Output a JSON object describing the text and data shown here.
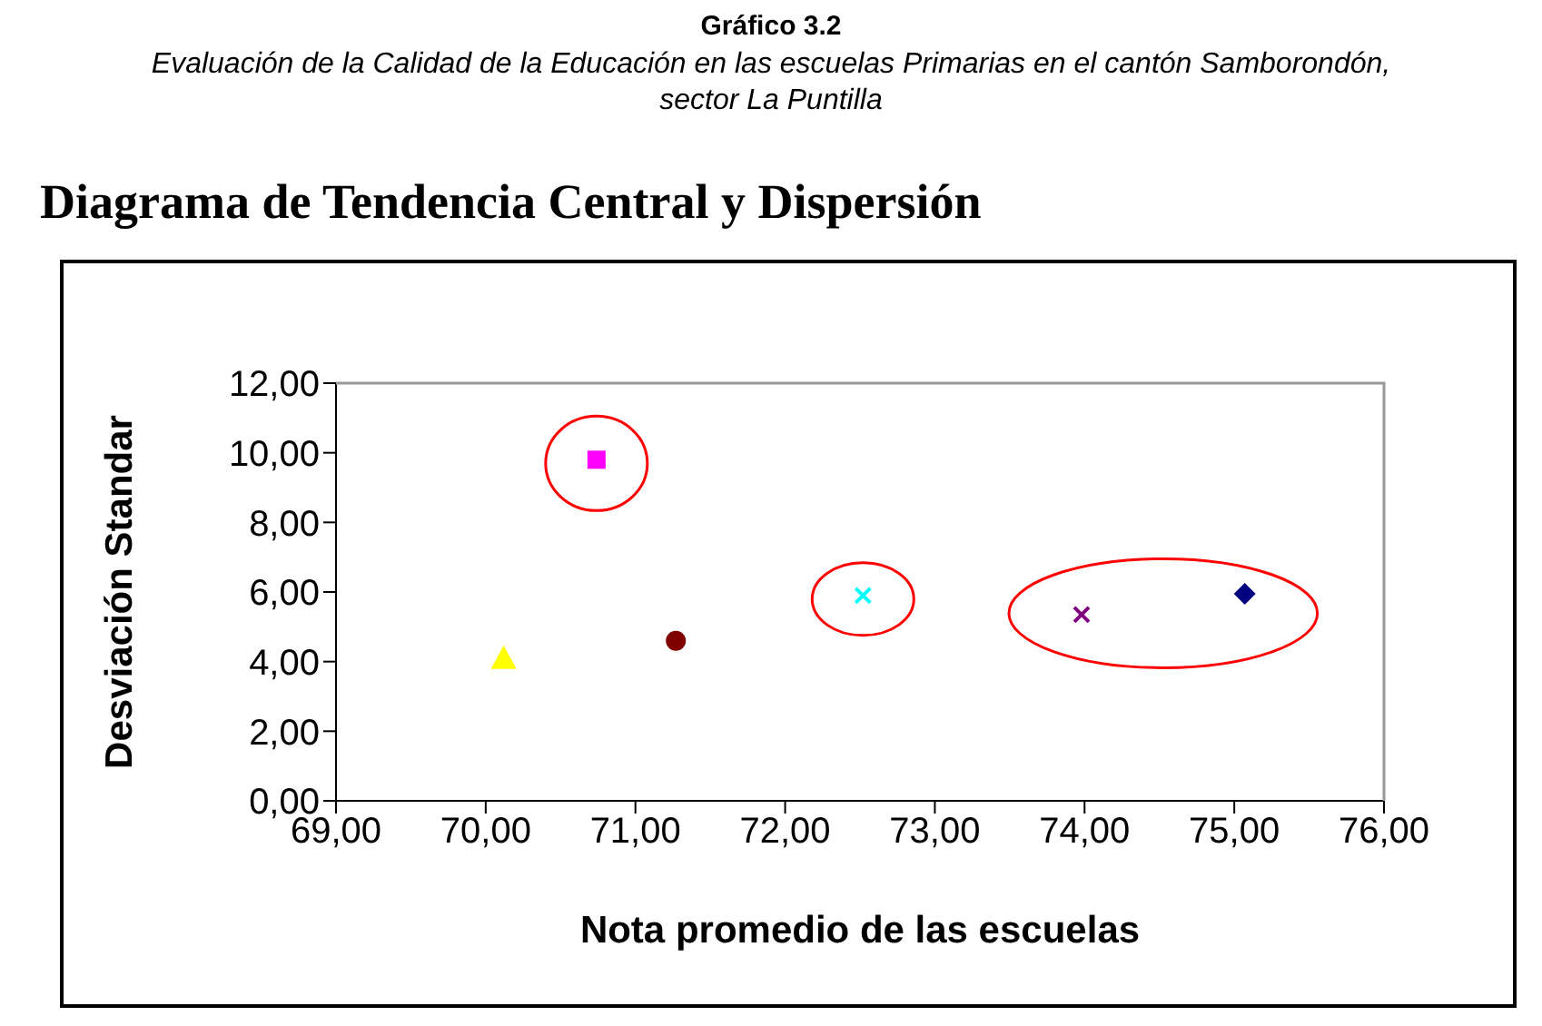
{
  "chart_data": {
    "type": "scatter",
    "title": "Gráfico 3.2",
    "subtitle": "Evaluación de la Calidad de la Educación en las escuelas Primarias en el cantón Samborondón, sector La Puntilla",
    "annotations": [
      "Diagrama de Tendencia Central y Dispersión"
    ],
    "xlabel": "Nota promedio de las escuelas",
    "ylabel": "Desviación Standar",
    "xlim": [
      69,
      76
    ],
    "xticks": [
      {
        "value": 69,
        "label": "69,00"
      },
      {
        "value": 70,
        "label": "70,00"
      },
      {
        "value": 71,
        "label": "71,00"
      },
      {
        "value": 72,
        "label": "72,00"
      },
      {
        "value": 73,
        "label": "73,00"
      },
      {
        "value": 74,
        "label": "74,00"
      },
      {
        "value": 75,
        "label": "75,00"
      },
      {
        "value": 76,
        "label": "76,00"
      }
    ],
    "ylim": [
      0,
      12
    ],
    "yticks": [
      {
        "value": 0,
        "label": "0,00"
      },
      {
        "value": 2,
        "label": "2,00"
      },
      {
        "value": 4,
        "label": "4,00"
      },
      {
        "value": 6,
        "label": "6,00"
      },
      {
        "value": 8,
        "label": "8,00"
      },
      {
        "value": 10,
        "label": "10,00"
      },
      {
        "value": 12,
        "label": "12,00"
      }
    ],
    "series": [
      {
        "color": "#ffff00",
        "marker": "triangle",
        "x": [
          70.12
        ],
        "values": [
          4.1
        ]
      },
      {
        "color": "#ff00ff",
        "marker": "square",
        "x": [
          70.74
        ],
        "values": [
          9.8
        ]
      },
      {
        "color": "#800000",
        "marker": "circle",
        "x": [
          71.27
        ],
        "values": [
          4.6
        ]
      },
      {
        "color": "#00ffff",
        "marker": "cross",
        "x": [
          72.52
        ],
        "values": [
          5.9
        ]
      },
      {
        "color": "#800080",
        "marker": "cross",
        "x": [
          73.98
        ],
        "values": [
          5.35
        ]
      },
      {
        "color": "#000080",
        "marker": "diamond",
        "x": [
          75.07
        ],
        "values": [
          5.95
        ]
      }
    ]
  }
}
